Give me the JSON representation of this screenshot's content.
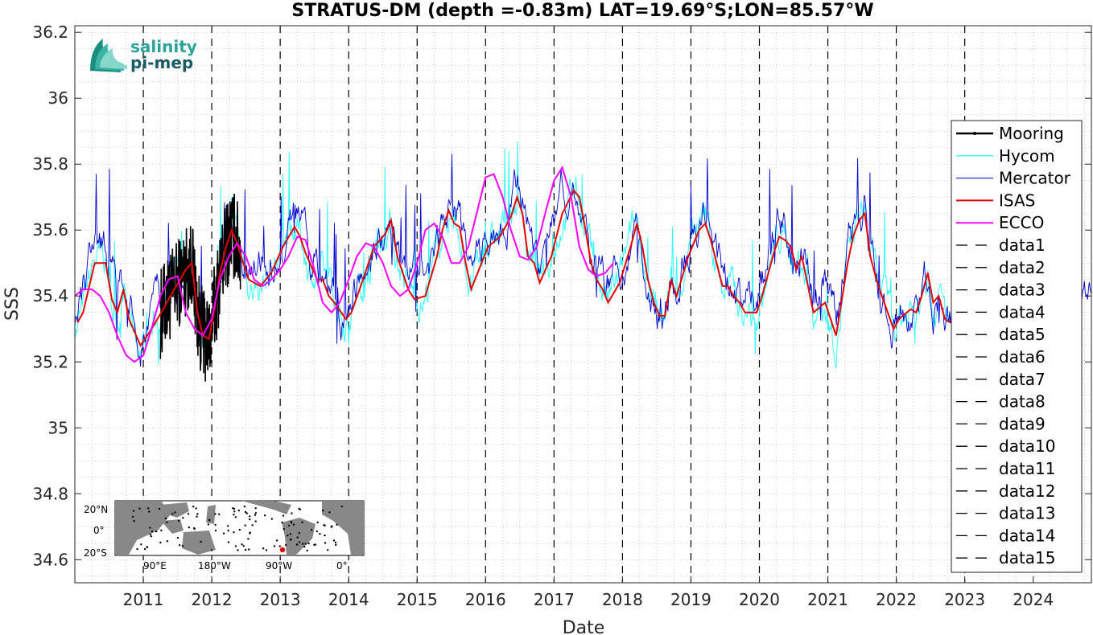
{
  "logo": {
    "line1": "salinity",
    "line2": "pi-mep"
  },
  "inset_map": {
    "lat_labels": [
      "20°N",
      "0°",
      "20°S"
    ],
    "lon_labels": [
      "90°E",
      "180°W",
      "90°W",
      "0°"
    ]
  },
  "colors": {
    "Mooring": "#000000",
    "Hycom": "#33ffff",
    "Mercator": "#0000cc",
    "ISAS": "#e60000",
    "ECCO": "#ff00ff",
    "vlines": "#000000"
  },
  "chart_data": {
    "type": "line",
    "title": "STRATUS-DM (depth =-0.83m) LAT=19.69°S;LON=85.57°W",
    "xlabel": "Date",
    "ylabel": "SSS",
    "xlim": [
      2010.0,
      2024.85
    ],
    "ylim": [
      34.53,
      36.22
    ],
    "xticks": [
      2011,
      2012,
      2013,
      2014,
      2015,
      2016,
      2017,
      2018,
      2019,
      2020,
      2021,
      2022,
      2023,
      2024
    ],
    "yticks": [
      34.6,
      34.8,
      35,
      35.2,
      35.4,
      35.6,
      35.8,
      36,
      36.2
    ],
    "ytick_labels": [
      "34.6",
      "34.8",
      "35",
      "35.2",
      "35.4",
      "35.6",
      "35.8",
      "36",
      "36.2"
    ],
    "grid": true,
    "legend_position": "right",
    "legend": [
      "Mooring",
      "Hycom",
      "Mercator",
      "ISAS",
      "ECCO",
      "data1",
      "data2",
      "data3",
      "data4",
      "data5",
      "data6",
      "data7",
      "data8",
      "data9",
      "data10",
      "data11",
      "data12",
      "data13",
      "data14",
      "data15"
    ],
    "vertical_dashed_lines_x": [
      2011,
      2012,
      2013,
      2014,
      2015,
      2016,
      2017,
      2018,
      2019,
      2020,
      2021,
      2022,
      2023
    ],
    "series": [
      {
        "name": "ISAS",
        "x": [
          2010.04,
          2010.12,
          2010.29,
          2010.45,
          2010.54,
          2010.62,
          2010.71,
          2010.79,
          2010.96,
          2011.12,
          2011.29,
          2011.45,
          2011.54,
          2011.62,
          2011.71,
          2011.79,
          2011.87,
          2011.96,
          2012.04,
          2012.12,
          2012.21,
          2012.29,
          2012.37,
          2012.46,
          2012.54,
          2012.62,
          2012.71,
          2012.87,
          2013.04,
          2013.21,
          2013.29,
          2013.37,
          2013.54,
          2013.62,
          2013.71,
          2013.79,
          2013.96,
          2014.04,
          2014.21,
          2014.37,
          2014.46,
          2014.54,
          2014.62,
          2014.71,
          2014.79,
          2014.87,
          2014.96,
          2015.12,
          2015.29,
          2015.37,
          2015.46,
          2015.54,
          2015.62,
          2015.71,
          2015.79,
          2015.96,
          2016.04,
          2016.21,
          2016.37,
          2016.46,
          2016.54,
          2016.62,
          2016.71,
          2016.79,
          2016.96,
          2017.12,
          2017.29,
          2017.37,
          2017.46,
          2017.54,
          2017.62,
          2017.71,
          2017.79,
          2017.96,
          2018.12,
          2018.21,
          2018.29,
          2018.37,
          2018.46,
          2018.54,
          2018.62,
          2018.71,
          2018.79,
          2018.96,
          2019.12,
          2019.21,
          2019.29,
          2019.46,
          2019.54,
          2019.62,
          2019.71,
          2019.79,
          2019.96,
          2020.04,
          2020.21,
          2020.29,
          2020.37,
          2020.46,
          2020.54,
          2020.62,
          2020.71,
          2020.79,
          2020.96,
          2021.12,
          2021.29,
          2021.37,
          2021.46,
          2021.54,
          2021.62,
          2021.71,
          2021.79,
          2021.96,
          2022.04,
          2022.21,
          2022.29,
          2022.37,
          2022.46,
          2022.54,
          2022.62,
          2022.71,
          2022.79
        ],
        "y": [
          35.32,
          35.35,
          35.5,
          35.5,
          35.39,
          35.35,
          35.42,
          35.33,
          35.25,
          35.3,
          35.36,
          35.42,
          35.45,
          35.48,
          35.5,
          35.35,
          35.28,
          35.27,
          35.36,
          35.47,
          35.55,
          35.6,
          35.56,
          35.5,
          35.45,
          35.44,
          35.43,
          35.47,
          35.55,
          35.61,
          35.58,
          35.53,
          35.45,
          35.45,
          35.4,
          35.38,
          35.33,
          35.35,
          35.45,
          35.55,
          35.57,
          35.59,
          35.63,
          35.52,
          35.47,
          35.42,
          35.39,
          35.4,
          35.52,
          35.6,
          35.66,
          35.62,
          35.61,
          35.5,
          35.42,
          35.51,
          35.55,
          35.58,
          35.64,
          35.7,
          35.65,
          35.52,
          35.5,
          35.44,
          35.52,
          35.65,
          35.72,
          35.7,
          35.6,
          35.5,
          35.45,
          35.42,
          35.38,
          35.44,
          35.55,
          35.62,
          35.55,
          35.45,
          35.38,
          35.34,
          35.34,
          35.45,
          35.4,
          35.52,
          35.6,
          35.62,
          35.57,
          35.43,
          35.43,
          35.4,
          35.38,
          35.35,
          35.35,
          35.4,
          35.53,
          35.58,
          35.57,
          35.55,
          35.48,
          35.52,
          35.43,
          35.35,
          35.38,
          35.28,
          35.5,
          35.58,
          35.63,
          35.65,
          35.52,
          35.45,
          35.4,
          35.3,
          35.33,
          35.36,
          35.35,
          35.4,
          35.47,
          35.38,
          35.4,
          35.33,
          35.32
        ]
      },
      {
        "name": "ECCO",
        "x": [
          2010.0,
          2010.12,
          2010.25,
          2010.37,
          2010.5,
          2010.62,
          2010.75,
          2010.87,
          2011.0,
          2011.12,
          2011.25,
          2011.37,
          2011.5,
          2011.62,
          2011.75,
          2011.87,
          2012.0,
          2012.12,
          2012.25,
          2012.37,
          2012.5,
          2012.62,
          2012.75,
          2012.87,
          2013.0,
          2013.12,
          2013.25,
          2013.37,
          2013.5,
          2013.62,
          2013.75,
          2013.87,
          2014.0,
          2014.12,
          2014.25,
          2014.37,
          2014.5,
          2014.62,
          2014.75,
          2014.87,
          2015.0,
          2015.12,
          2015.25,
          2015.37,
          2015.5,
          2015.62,
          2015.75,
          2015.87,
          2016.0,
          2016.12,
          2016.25,
          2016.37,
          2016.5,
          2016.62,
          2016.75,
          2016.87,
          2017.0,
          2017.12,
          2017.25,
          2017.37,
          2017.5,
          2017.62,
          2017.75,
          2017.87
        ],
        "y": [
          35.4,
          35.42,
          35.42,
          35.4,
          35.35,
          35.28,
          35.22,
          35.2,
          35.22,
          35.3,
          35.4,
          35.45,
          35.46,
          35.35,
          35.3,
          35.28,
          35.33,
          35.45,
          35.52,
          35.56,
          35.52,
          35.45,
          35.43,
          35.45,
          35.48,
          35.52,
          35.58,
          35.57,
          35.48,
          35.38,
          35.35,
          35.38,
          35.45,
          35.52,
          35.56,
          35.55,
          35.5,
          35.43,
          35.4,
          35.42,
          35.5,
          35.6,
          35.62,
          35.58,
          35.5,
          35.5,
          35.55,
          35.65,
          35.76,
          35.77,
          35.7,
          35.6,
          35.52,
          35.51,
          35.55,
          35.65,
          35.75,
          35.79,
          35.7,
          35.55,
          35.48,
          35.46,
          35.47,
          35.5
        ]
      }
    ]
  }
}
